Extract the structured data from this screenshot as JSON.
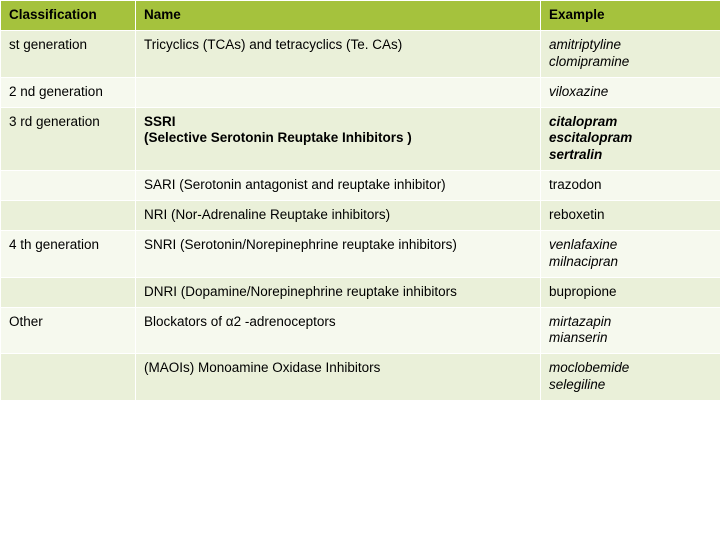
{
  "columns": [
    "Classification",
    "Name",
    "Example"
  ],
  "header_bg": "#a5c23d",
  "row_bg_even": "#eaf0d9",
  "row_bg_odd": "#f6f9ee",
  "border_color": "#ffffff",
  "font_size_pt": 10,
  "rows": [
    {
      "classification": "st generation",
      "name": "Tricyclics (TCAs) and tetracyclics (Te. CAs)",
      "example": "amitriptyline\nclomipramine",
      "bg": "#eaf0d9",
      "example_italic": true
    },
    {
      "classification": "2 nd generation",
      "name": "",
      "example": "viloxazine",
      "bg": "#f6f9ee",
      "example_italic": true
    },
    {
      "classification": "3 rd generation",
      "name": "SSRI\n(Selective Serotonin Reuptake Inhibitors )",
      "name_bold": true,
      "example": "citalopram\nescitalopram\nsertralin",
      "bg": "#eaf0d9",
      "example_italic": true,
      "example_bold": true
    },
    {
      "classification": "",
      "name": "SARI (Serotonin antagonist and reuptake inhibitor)",
      "example": "trazodon",
      "bg": "#f6f9ee"
    },
    {
      "classification": "",
      "name": "NRI (Nor-Adrenaline Reuptake inhibitors)",
      "example": "reboxetin",
      "bg": "#eaf0d9"
    },
    {
      "classification": "4 th generation",
      "name": "SNRI (Serotonin/Norepinephrine reuptake inhibitors)",
      "example": "venlafaxine\nmilnacipran",
      "bg": "#f6f9ee",
      "example_italic": true
    },
    {
      "classification": "",
      "name": "DNRI (Dopamine/Norepinephrine reuptake inhibitors",
      "example": "bupropione",
      "bg": "#eaf0d9"
    },
    {
      "classification": "Other",
      "name": "Blockators of  α2 -adrenoceptors",
      "example": "mirtazapin\nmianserin",
      "bg": "#f6f9ee",
      "example_italic": true
    },
    {
      "classification": "",
      "name": "(MAOIs) Monoamine Oxidase Inhibitors",
      "example": "moclobemide\nselegiline",
      "bg": "#eaf0d9",
      "example_italic": true
    }
  ]
}
